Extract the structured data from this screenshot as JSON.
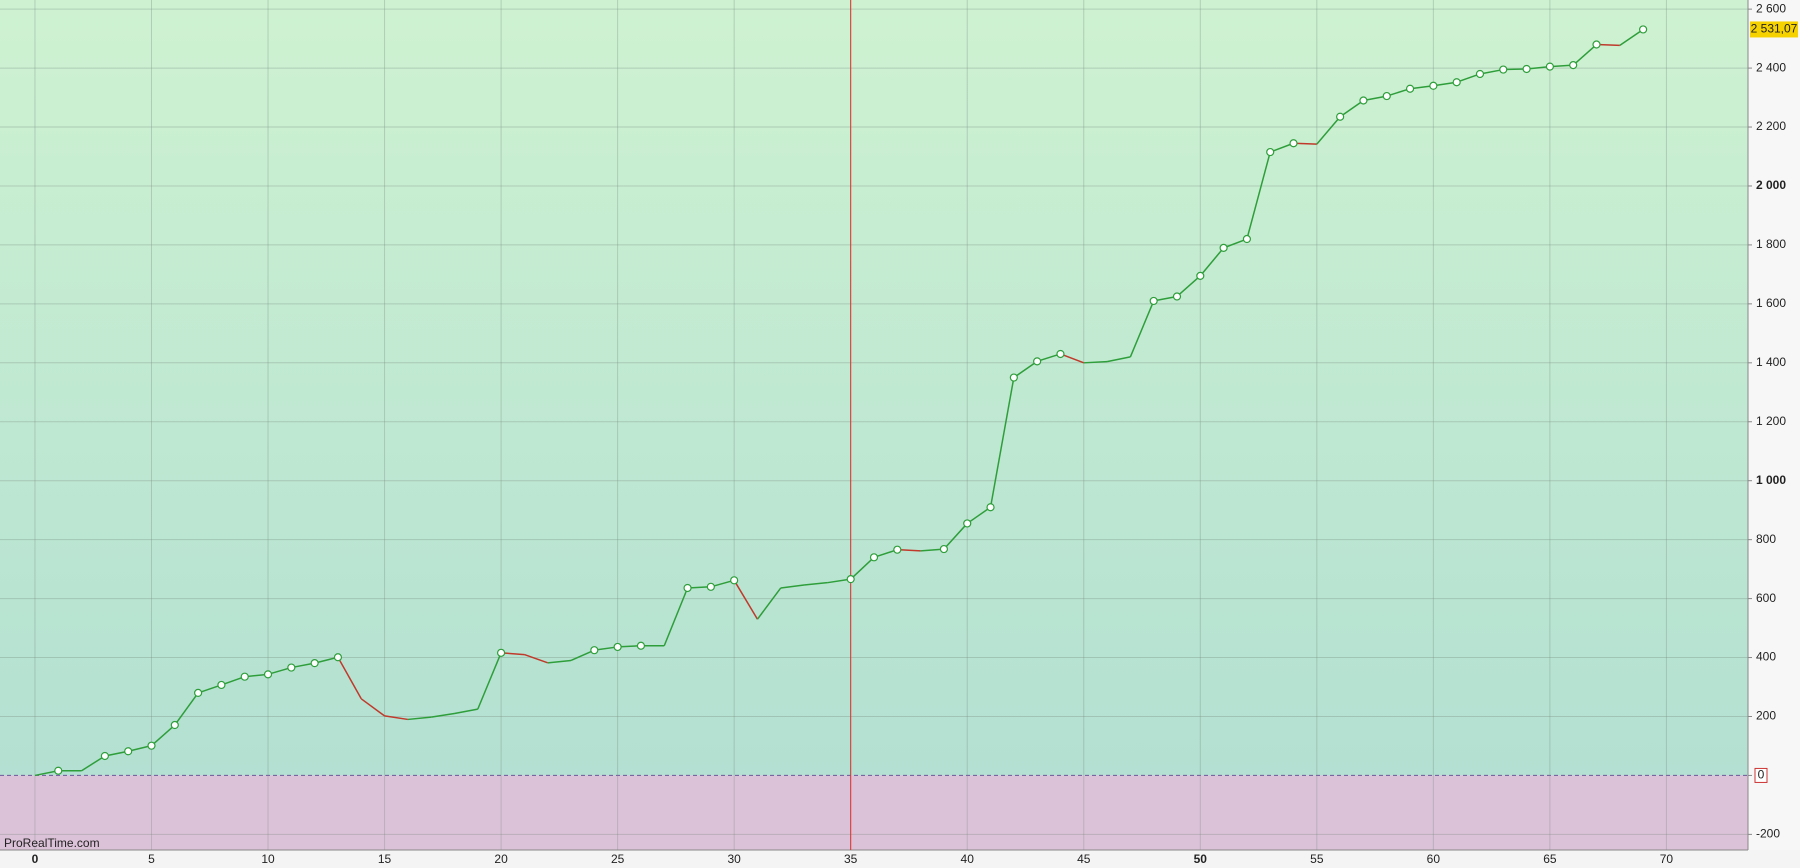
{
  "chart_data": {
    "type": "line",
    "watermark": "ProRealTime.com",
    "x": [
      0,
      1,
      2,
      3,
      4,
      5,
      6,
      7,
      8,
      9,
      10,
      11,
      12,
      13,
      14,
      15,
      16,
      17,
      18,
      19,
      20,
      21,
      22,
      23,
      24,
      25,
      26,
      27,
      28,
      29,
      30,
      31,
      32,
      33,
      34,
      35,
      36,
      37,
      38,
      39,
      40,
      41,
      42,
      43,
      44,
      45,
      46,
      47,
      48,
      49,
      50,
      51,
      52,
      53,
      54,
      55,
      56,
      57,
      58,
      59,
      60,
      61,
      62,
      63,
      64,
      65,
      66,
      67,
      68,
      69
    ],
    "values": [
      0,
      16,
      16,
      66,
      82,
      101,
      171,
      280,
      307,
      335,
      343,
      366,
      381,
      401,
      260,
      202,
      190,
      198,
      210,
      225,
      416,
      410,
      382,
      390,
      425,
      436,
      440,
      440,
      636,
      640,
      662,
      530,
      636,
      646,
      654,
      666,
      740,
      766,
      762,
      768,
      855,
      910,
      1350,
      1405,
      1430,
      1400,
      1404,
      1420,
      1610,
      1625,
      1695,
      1790,
      1820,
      2115,
      2145,
      2142,
      2235,
      2290,
      2305,
      2330,
      2340,
      2352,
      2380,
      2395,
      2397,
      2405,
      2410,
      2480,
      2477,
      2531.07
    ],
    "last_value_label": "2 531,07",
    "up_color": "#2e9e3a",
    "down_color": "#c0392b",
    "cursor_x": 35,
    "xlim": [
      -1.5,
      73.5
    ],
    "xticks": [
      0,
      5,
      10,
      15,
      20,
      25,
      30,
      35,
      40,
      45,
      50,
      55,
      60,
      65,
      70
    ],
    "ylim": [
      -253,
      2631
    ],
    "yticks": [
      {
        "value": -200,
        "label": "-200"
      },
      0,
      200,
      400,
      600,
      800,
      {
        "value": 1000,
        "label": "1 000"
      },
      {
        "value": 1200,
        "label": "1 200"
      },
      {
        "value": 1400,
        "label": "1 400"
      },
      {
        "value": 1600,
        "label": "1 600"
      },
      {
        "value": 1800,
        "label": "1 800"
      },
      {
        "value": 2000,
        "label": "2 000"
      },
      {
        "value": 2200,
        "label": "2 200"
      },
      {
        "value": 2400,
        "label": "2 400"
      },
      {
        "value": 2600,
        "label": "2 600"
      }
    ],
    "grid": true
  }
}
